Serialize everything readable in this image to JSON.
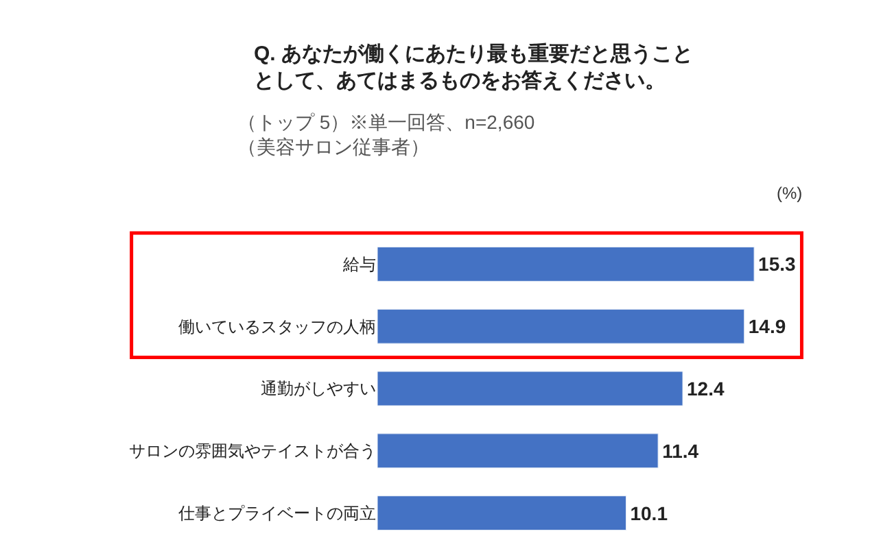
{
  "chart_data": {
    "type": "bar",
    "orientation": "horizontal",
    "title": "Q. あなたが働くにあたり最も重要だと思うこととして、あてはまるものをお答えください。",
    "subtitle": "（トップ 5）※単一回答、n=2,660\n（美容サロン従事者）",
    "categories": [
      "給与",
      "働いているスタッフの人柄",
      "通勤がしやすい",
      "サロンの雰囲気やテイストが合う",
      "仕事とプライベートの両立"
    ],
    "values": [
      15.3,
      14.9,
      12.4,
      11.4,
      10.1
    ],
    "color": "#4472c4",
    "data_labels": true,
    "annotations": [
      "(%)"
    ]
  }
}
